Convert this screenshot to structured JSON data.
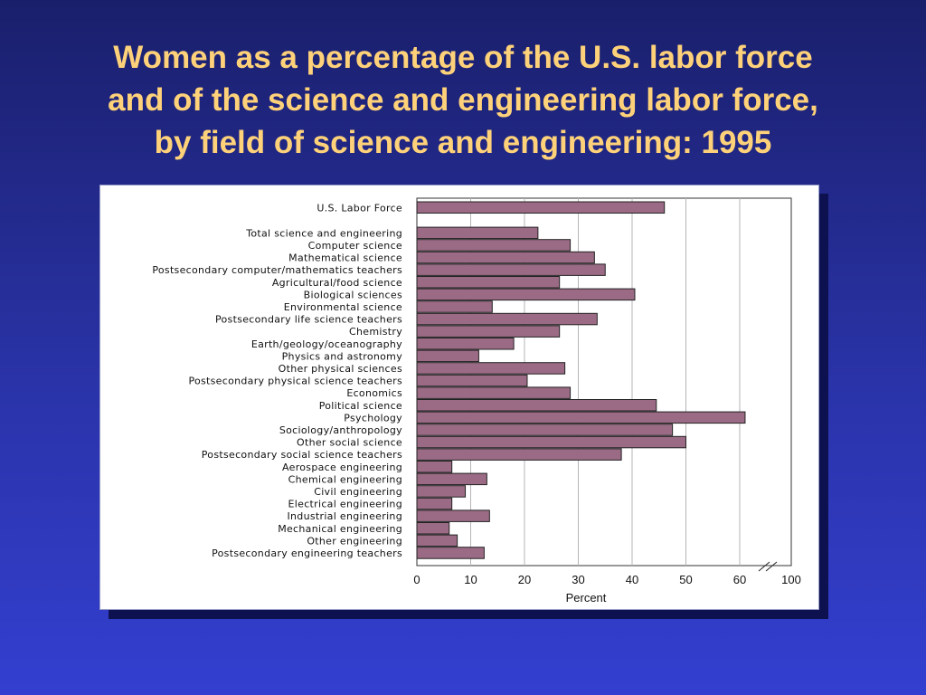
{
  "slide": {
    "title_lines": [
      "Women as a percentage of the U.S. labor force",
      "and of the science and engineering labor force,",
      "by field of science and engineering: 1995"
    ]
  },
  "chart_data": {
    "type": "bar",
    "orientation": "horizontal",
    "title": "",
    "xlabel": "Percent",
    "ylabel": "",
    "xlim": [
      0,
      100
    ],
    "axis_break": "between 60 and 100",
    "x_ticks": [
      "0",
      "10",
      "20",
      "30",
      "40",
      "50",
      "60",
      "100"
    ],
    "grid": "vertical",
    "bar_color": "#9b6b85",
    "categories": [
      "U.S. Labor Force",
      "Total science and engineering",
      "Computer science",
      "Mathematical science",
      "Postsecondary computer/mathematics teachers",
      "Agricultural/food science",
      "Biological sciences",
      "Environmental science",
      "Postsecondary life science teachers",
      "Chemistry",
      "Earth/geology/oceanography",
      "Physics and astronomy",
      "Other physical sciences",
      "Postsecondary physical science teachers",
      "Economics",
      "Political science",
      "Psychology",
      "Sociology/anthropology",
      "Other social science",
      "Postsecondary social science teachers",
      "Aerospace engineering",
      "Chemical engineering",
      "Civil engineering",
      "Electrical engineering",
      "Industrial engineering",
      "Mechanical engineering",
      "Other engineering",
      "Postsecondary engineering teachers"
    ],
    "values": [
      46,
      22.5,
      28.5,
      33,
      35,
      26.5,
      40.5,
      14,
      33.5,
      26.5,
      18,
      11.5,
      27.5,
      20.5,
      28.5,
      44.5,
      61,
      47.5,
      50,
      38,
      6.5,
      13,
      9,
      6.5,
      13.5,
      6,
      7.5,
      12.5
    ]
  }
}
